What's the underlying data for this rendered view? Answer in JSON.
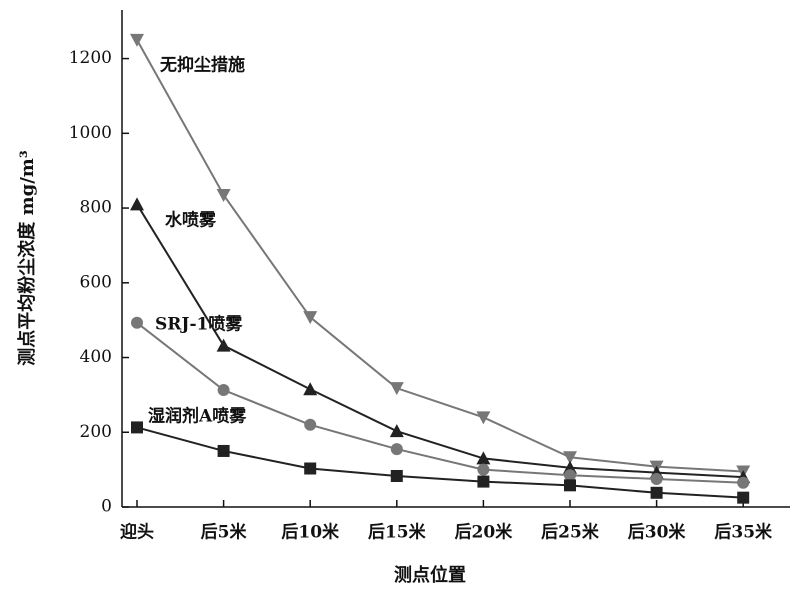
{
  "chart_data": {
    "type": "line",
    "x_label": "测点位置",
    "y_label": "测点平均粉尘浓度 mg/m³",
    "categories": [
      "迎头",
      "后5米",
      "后10米",
      "后15米",
      "后20米",
      "后25米",
      "后30米",
      "后35米"
    ],
    "ylim": [
      0,
      1330
    ],
    "yticks": [
      0,
      200,
      400,
      600,
      800,
      1000,
      1200
    ],
    "series": [
      {
        "name": "无抑尘措施",
        "color": "#777777",
        "marker": "triangle-down",
        "values": [
          1250,
          835,
          508,
          318,
          240,
          133,
          108,
          95
        ]
      },
      {
        "name": "水喷雾",
        "color": "#222222",
        "marker": "triangle-up",
        "values": [
          810,
          432,
          315,
          203,
          130,
          105,
          92,
          80
        ]
      },
      {
        "name": "SRJ-1喷雾",
        "color": "#777777",
        "marker": "circle",
        "values": [
          493,
          313,
          220,
          155,
          100,
          85,
          75,
          65
        ]
      },
      {
        "name": "湿润剂A喷雾",
        "color": "#222222",
        "marker": "square",
        "values": [
          213,
          150,
          103,
          83,
          68,
          58,
          38,
          25
        ]
      }
    ]
  }
}
